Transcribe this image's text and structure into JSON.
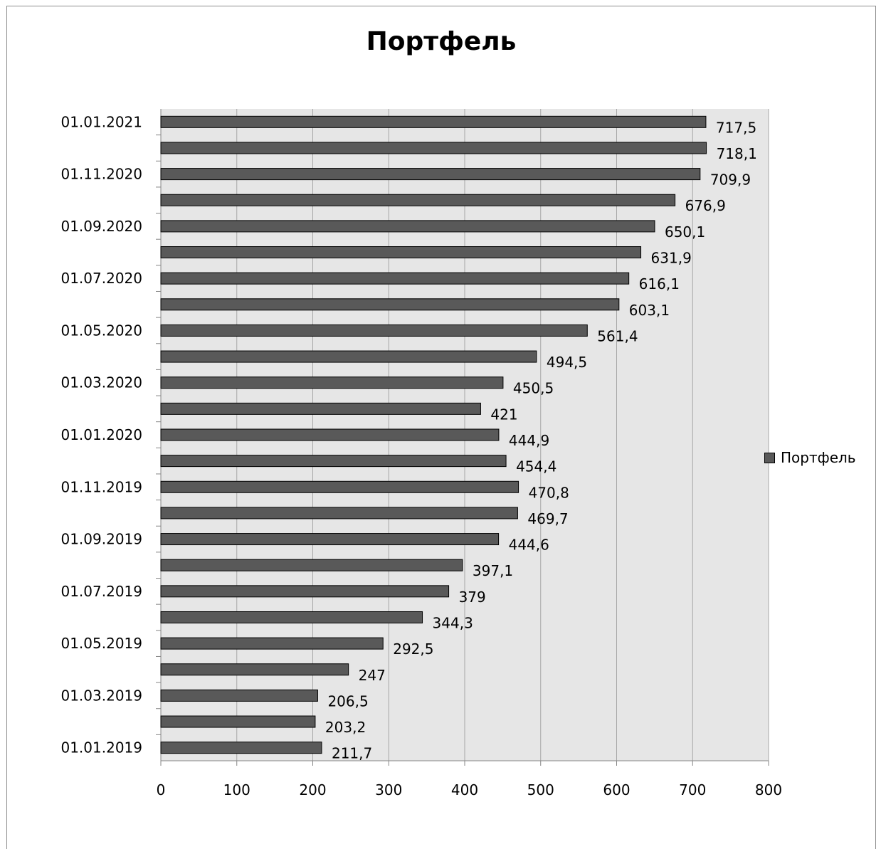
{
  "chart_data": {
    "type": "bar",
    "orientation": "horizontal",
    "title": "Портфель",
    "xlabel": "",
    "ylabel": "",
    "xlim": [
      0,
      800
    ],
    "x_ticks": [
      "0",
      "100",
      "200",
      "300",
      "400",
      "500",
      "600",
      "700",
      "800"
    ],
    "grid": "vertical",
    "legend_position": "right",
    "colors": {
      "bar": "#595959",
      "plot_bg": "#e6e6e6",
      "gridline": "#a6a6a6"
    },
    "categories": [
      "01.01.2019",
      "",
      "01.03.2019",
      "",
      "01.05.2019",
      "",
      "01.07.2019",
      "",
      "01.09.2019",
      "",
      "01.11.2019",
      "",
      "01.01.2020",
      "",
      "01.03.2020",
      "",
      "01.05.2020",
      "",
      "01.07.2020",
      "",
      "01.09.2020",
      "",
      "01.11.2020",
      "",
      "01.01.2021"
    ],
    "series": [
      {
        "name": "Портфель",
        "values": [
          211.7,
          203.2,
          206.5,
          247,
          292.5,
          344.3,
          379,
          397.1,
          444.6,
          469.7,
          470.8,
          454.4,
          444.9,
          421,
          450.5,
          494.5,
          561.4,
          603.1,
          616.1,
          631.9,
          650.1,
          676.9,
          709.9,
          718.1,
          717.5
        ],
        "labels": [
          "211,7",
          "203,2",
          "206,5",
          "247",
          "292,5",
          "344,3",
          "379",
          "397,1",
          "444,6",
          "469,7",
          "470,8",
          "454,4",
          "444,9",
          "421",
          "450,5",
          "494,5",
          "561,4",
          "603,1",
          "616,1",
          "631,9",
          "650,1",
          "676,9",
          "709,9",
          "718,1",
          "717,5"
        ]
      }
    ]
  }
}
